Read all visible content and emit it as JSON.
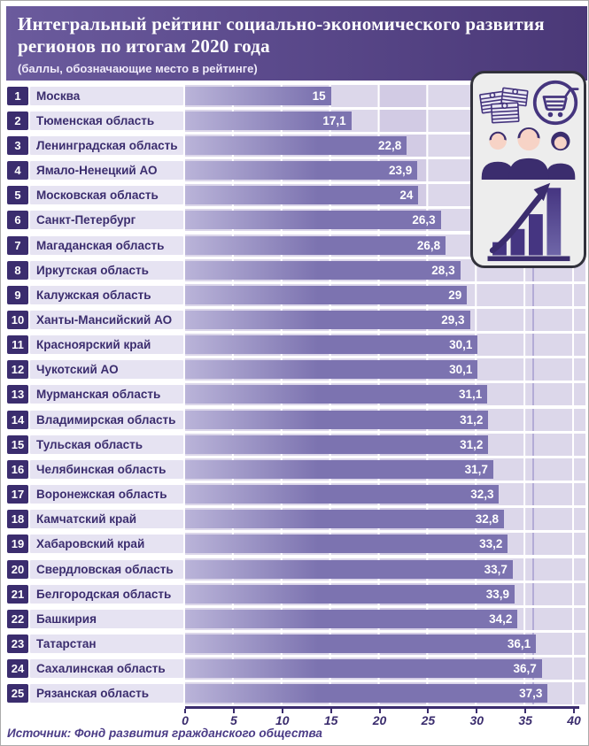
{
  "header": {
    "title_line1": "Интегральный рейтинг социально-экономического развития",
    "title_line2": "регионов по итогам 2020 года",
    "subtitle": "(баллы, обозначающие место в рейтинге)"
  },
  "chart_data": {
    "type": "bar",
    "orientation": "horizontal",
    "title": "Интегральный рейтинг социально-экономического развития регионов по итогам 2020 года",
    "subtitle": "(баллы, обозначающие место в рейтинге)",
    "xlabel": "",
    "ylabel": "",
    "xlim": [
      0,
      40
    ],
    "xticks": [
      0,
      5,
      10,
      15,
      20,
      25,
      30,
      35,
      40
    ],
    "grid": true,
    "value_format": "comma-decimal",
    "rows": [
      {
        "rank": 1,
        "region": "Москва",
        "value": 15,
        "label": "15"
      },
      {
        "rank": 2,
        "region": "Тюменская область",
        "value": 17.1,
        "label": "17,1"
      },
      {
        "rank": 3,
        "region": "Ленинградская область",
        "value": 22.8,
        "label": "22,8"
      },
      {
        "rank": 4,
        "region": "Ямало-Ненецкий АО",
        "value": 23.9,
        "label": "23,9"
      },
      {
        "rank": 5,
        "region": "Московская область",
        "value": 24,
        "label": "24"
      },
      {
        "rank": 6,
        "region": "Санкт-Петербург",
        "value": 26.3,
        "label": "26,3"
      },
      {
        "rank": 7,
        "region": "Магаданская область",
        "value": 26.8,
        "label": "26,8"
      },
      {
        "rank": 8,
        "region": "Иркутская область",
        "value": 28.3,
        "label": "28,3"
      },
      {
        "rank": 9,
        "region": "Калужская область",
        "value": 29,
        "label": "29"
      },
      {
        "rank": 10,
        "region": "Ханты-Мансийский АО",
        "value": 29.3,
        "label": "29,3"
      },
      {
        "rank": 11,
        "region": "Красноярский край",
        "value": 30.1,
        "label": "30,1"
      },
      {
        "rank": 12,
        "region": "Чукотский АО",
        "value": 30.1,
        "label": "30,1"
      },
      {
        "rank": 13,
        "region": "Мурманская область",
        "value": 31.1,
        "label": "31,1"
      },
      {
        "rank": 14,
        "region": "Владимирская область",
        "value": 31.2,
        "label": "31,2"
      },
      {
        "rank": 15,
        "region": "Тульская область",
        "value": 31.2,
        "label": "31,2"
      },
      {
        "rank": 16,
        "region": "Челябинская область",
        "value": 31.7,
        "label": "31,7"
      },
      {
        "rank": 17,
        "region": "Воронежская область",
        "value": 32.3,
        "label": "32,3"
      },
      {
        "rank": 18,
        "region": "Камчатский край",
        "value": 32.8,
        "label": "32,8"
      },
      {
        "rank": 19,
        "region": "Хабаровский край",
        "value": 33.2,
        "label": "33,2"
      },
      {
        "rank": 20,
        "region": "Свердловская область",
        "value": 33.7,
        "label": "33,7"
      },
      {
        "rank": 21,
        "region": "Белгородская область",
        "value": 33.9,
        "label": "33,9"
      },
      {
        "rank": 22,
        "region": "Башкирия",
        "value": 34.2,
        "label": "34,2"
      },
      {
        "rank": 23,
        "region": "Татарстан",
        "value": 36.1,
        "label": "36,1"
      },
      {
        "rank": 24,
        "region": "Сахалинская область",
        "value": 36.7,
        "label": "36,7"
      },
      {
        "rank": 25,
        "region": "Рязанская область",
        "value": 37.3,
        "label": "37,3"
      }
    ],
    "source": "Источник: Фонд развития гражданского общества",
    "legend": null
  },
  "icons": {
    "panel": [
      "money-stacks-icon",
      "shopping-cart-icon",
      "team-people-icon",
      "growth-chart-icon"
    ]
  },
  "colors": {
    "accent": "#3b2d6e",
    "header_left": "#6b5b9d",
    "header_right": "#4a3877",
    "bar_start": "#bab4d9",
    "bar_end": "#7c73b0",
    "strip": "#e6e3f2",
    "chart_bg": "#dcd7ea",
    "band_bg": "#d2cbe4",
    "panel_bg": "#ededed",
    "skin": "#f7d3c6"
  }
}
